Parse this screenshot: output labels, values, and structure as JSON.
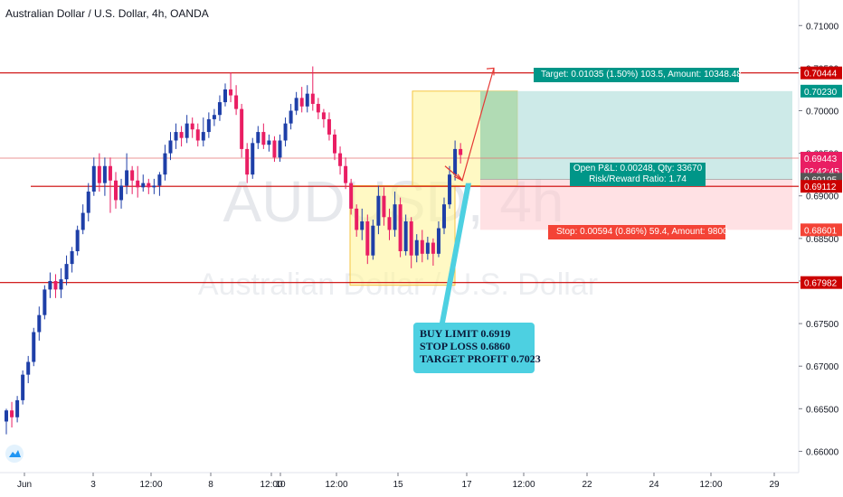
{
  "header": {
    "title": "Australian Dollar / U.S. Dollar, 4h, OANDA"
  },
  "watermark": {
    "symbol": "AUDUSD, 4h",
    "name": "Australian Dollar / U.S. Dollar"
  },
  "colors": {
    "up": "#1e3fa8",
    "down": "#e91e63",
    "line": "#cc0000",
    "target_badge": "#009688",
    "stop_badge": "#f44336",
    "callout": "#4dd0e1",
    "yellow_box": "#fff59d"
  },
  "callout": {
    "line1": "BUY LIMIT 0.6919",
    "line2": "STOP LOSS 0.6860",
    "line3": "TARGET PROFIT 0.7023"
  },
  "position": {
    "target_label": "Target: 0.01035 (1.50%) 103.5, Amount: 10348.48",
    "pnl_label": "Open P&L: 0.00248, Qty: 33670",
    "rr_label": "Risk/Reward Ratio: 1.74",
    "stop_label": "Stop: 0.00594 (0.86%) 59.4, Amount: 9800"
  },
  "chart_data": {
    "type": "candlestick",
    "title": "Australian Dollar / U.S. Dollar, 4h, OANDA",
    "ylim": [
      0.6575,
      0.713
    ],
    "y_ticks": [
      "0.71000",
      "0.70500",
      "0.70000",
      "0.69500",
      "0.69000",
      "0.68500",
      "0.68000",
      "0.67500",
      "0.67000",
      "0.66500",
      "0.66000"
    ],
    "x_ticks": [
      "Jun",
      "3",
      "12:00",
      "8",
      "12:00",
      "10",
      "12:00",
      "15",
      "17",
      "12:00",
      "22",
      "24",
      "12:00",
      "29"
    ],
    "price_labels": [
      {
        "text": "0.70444",
        "value": 0.70444,
        "color": "#cc0000"
      },
      {
        "text": "0.70230",
        "value": 0.7023,
        "color": "#009688"
      },
      {
        "text": "0.69443",
        "value": 0.69443,
        "color": "#e91e63"
      },
      {
        "text": "02:42:45",
        "value": 0.69295,
        "color": "#e91e63"
      },
      {
        "text": "0.69195",
        "value": 0.69195,
        "color": "#555555"
      },
      {
        "text": "0.69112",
        "value": 0.69112,
        "color": "#cc0000"
      },
      {
        "text": "0.68601",
        "value": 0.68601,
        "color": "#f44336"
      },
      {
        "text": "0.67982",
        "value": 0.67982,
        "color": "#cc0000"
      }
    ],
    "horizontal_levels": [
      0.70444,
      0.69443,
      0.69112,
      0.67982
    ],
    "candles": [
      [
        0.6635,
        0.6648,
        0.662,
        0.665
      ],
      [
        0.6648,
        0.664,
        0.6628,
        0.6658
      ],
      [
        0.664,
        0.666,
        0.6634,
        0.6665
      ],
      [
        0.666,
        0.669,
        0.6655,
        0.6695
      ],
      [
        0.669,
        0.6705,
        0.668,
        0.6712
      ],
      [
        0.6705,
        0.674,
        0.67,
        0.6745
      ],
      [
        0.674,
        0.676,
        0.673,
        0.677
      ],
      [
        0.676,
        0.679,
        0.6755,
        0.6795
      ],
      [
        0.679,
        0.68,
        0.678,
        0.681
      ],
      [
        0.68,
        0.679,
        0.678,
        0.6808
      ],
      [
        0.679,
        0.6802,
        0.678,
        0.6815
      ],
      [
        0.6802,
        0.682,
        0.6795,
        0.683
      ],
      [
        0.682,
        0.6835,
        0.681,
        0.684
      ],
      [
        0.6835,
        0.686,
        0.683,
        0.6865
      ],
      [
        0.686,
        0.688,
        0.6855,
        0.689
      ],
      [
        0.688,
        0.6905,
        0.687,
        0.6915
      ],
      [
        0.6905,
        0.6935,
        0.69,
        0.6945
      ],
      [
        0.6935,
        0.6915,
        0.6905,
        0.695
      ],
      [
        0.6915,
        0.6935,
        0.69,
        0.6945
      ],
      [
        0.6935,
        0.6918,
        0.688,
        0.6945
      ],
      [
        0.6918,
        0.6895,
        0.6885,
        0.6928
      ],
      [
        0.6895,
        0.6912,
        0.6885,
        0.692
      ],
      [
        0.6912,
        0.693,
        0.6902,
        0.695
      ],
      [
        0.693,
        0.6918,
        0.6902,
        0.6935
      ],
      [
        0.6918,
        0.691,
        0.6898,
        0.6935
      ],
      [
        0.691,
        0.6915,
        0.6905,
        0.6925
      ],
      [
        0.6915,
        0.691,
        0.6902,
        0.692
      ],
      [
        0.691,
        0.6912,
        0.6902,
        0.692
      ],
      [
        0.6912,
        0.6925,
        0.69,
        0.6928
      ],
      [
        0.6925,
        0.695,
        0.6918,
        0.696
      ],
      [
        0.695,
        0.6965,
        0.6942,
        0.6975
      ],
      [
        0.6965,
        0.6975,
        0.6955,
        0.6985
      ],
      [
        0.6975,
        0.6968,
        0.6958,
        0.6982
      ],
      [
        0.6968,
        0.6985,
        0.6962,
        0.6995
      ],
      [
        0.6985,
        0.6978,
        0.6968,
        0.6992
      ],
      [
        0.6978,
        0.6965,
        0.6958,
        0.6985
      ],
      [
        0.6965,
        0.6975,
        0.6958,
        0.6992
      ],
      [
        0.6975,
        0.699,
        0.6968,
        0.6998
      ],
      [
        0.699,
        0.6995,
        0.6982,
        0.7002
      ],
      [
        0.6995,
        0.701,
        0.6988,
        0.7018
      ],
      [
        0.701,
        0.7025,
        0.7005,
        0.7032
      ],
      [
        0.7025,
        0.7018,
        0.701,
        0.7045
      ],
      [
        0.7018,
        0.7002,
        0.6995,
        0.703
      ],
      [
        0.7002,
        0.6955,
        0.6945,
        0.7008
      ],
      [
        0.6955,
        0.6925,
        0.6915,
        0.6962
      ],
      [
        0.6925,
        0.6962,
        0.692,
        0.6968
      ],
      [
        0.6962,
        0.6975,
        0.6955,
        0.6982
      ],
      [
        0.6975,
        0.696,
        0.6955,
        0.6985
      ],
      [
        0.696,
        0.6965,
        0.6952,
        0.6972
      ],
      [
        0.6965,
        0.6945,
        0.694,
        0.697
      ],
      [
        0.6945,
        0.6965,
        0.694,
        0.6972
      ],
      [
        0.6965,
        0.6985,
        0.6958,
        0.6992
      ],
      [
        0.6985,
        0.7,
        0.6978,
        0.7008
      ],
      [
        0.7,
        0.7015,
        0.6995,
        0.7022
      ],
      [
        0.7015,
        0.7005,
        0.6998,
        0.7028
      ],
      [
        0.7005,
        0.702,
        0.6998,
        0.703
      ],
      [
        0.702,
        0.7008,
        0.7,
        0.7052
      ],
      [
        0.7008,
        0.6998,
        0.699,
        0.7015
      ],
      [
        0.6998,
        0.699,
        0.698,
        0.7002
      ],
      [
        0.699,
        0.6972,
        0.6965,
        0.6998
      ],
      [
        0.6972,
        0.695,
        0.6942,
        0.6978
      ],
      [
        0.695,
        0.6935,
        0.6925,
        0.6958
      ],
      [
        0.6935,
        0.6915,
        0.6908,
        0.6945
      ],
      [
        0.6915,
        0.6885,
        0.6878,
        0.692
      ],
      [
        0.6885,
        0.686,
        0.6852,
        0.689
      ],
      [
        0.686,
        0.687,
        0.6848,
        0.6885
      ],
      [
        0.687,
        0.683,
        0.682,
        0.6878
      ],
      [
        0.683,
        0.6865,
        0.6825,
        0.6872
      ],
      [
        0.6865,
        0.69,
        0.6855,
        0.6912
      ],
      [
        0.69,
        0.6875,
        0.6865,
        0.691
      ],
      [
        0.6875,
        0.686,
        0.6848,
        0.6885
      ],
      [
        0.686,
        0.689,
        0.6852,
        0.6905
      ],
      [
        0.689,
        0.6835,
        0.6828,
        0.6898
      ],
      [
        0.6835,
        0.687,
        0.683,
        0.6878
      ],
      [
        0.687,
        0.683,
        0.6815,
        0.6875
      ],
      [
        0.683,
        0.6848,
        0.6822,
        0.6855
      ],
      [
        0.6848,
        0.6832,
        0.6822,
        0.686
      ],
      [
        0.6832,
        0.6845,
        0.6825,
        0.6852
      ],
      [
        0.6845,
        0.6832,
        0.6818,
        0.685
      ],
      [
        0.6832,
        0.6862,
        0.6828,
        0.687
      ],
      [
        0.6862,
        0.689,
        0.6855,
        0.6898
      ],
      [
        0.689,
        0.6925,
        0.6885,
        0.6935
      ],
      [
        0.6925,
        0.6955,
        0.6918,
        0.6965
      ],
      [
        0.6955,
        0.6948,
        0.6938,
        0.6962
      ]
    ]
  }
}
